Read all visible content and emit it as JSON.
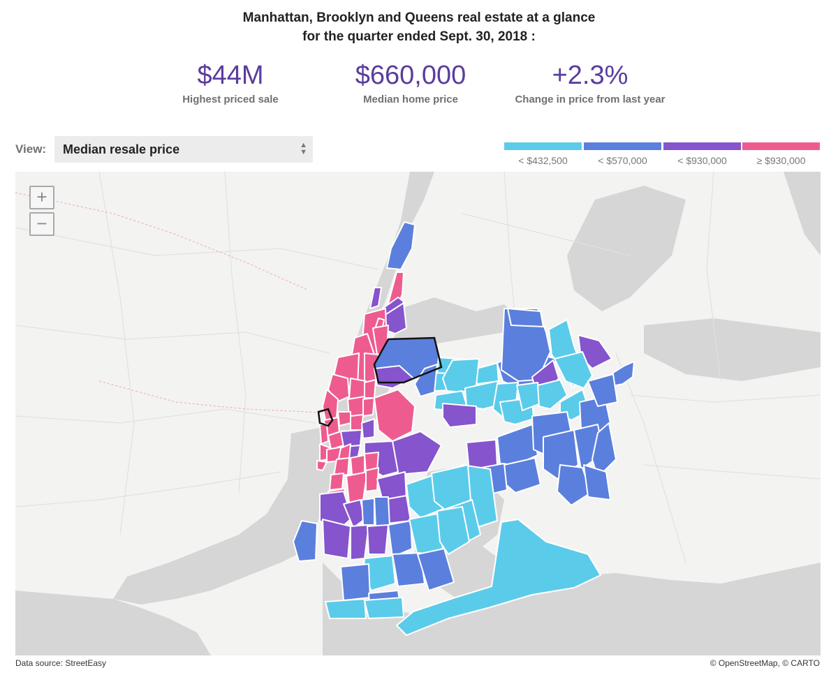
{
  "header": {
    "title_line1": "Manhattan, Brooklyn and Queens real estate at a glance",
    "title_line2": "for the quarter ended Sept. 30, 2018 :"
  },
  "stats": [
    {
      "value": "$44M",
      "label": "Highest priced sale"
    },
    {
      "value": "$660,000",
      "label": "Median home price"
    },
    {
      "value": "+2.3%",
      "label": "Change in price from last year"
    }
  ],
  "view": {
    "label": "View:",
    "selected": "Median resale price"
  },
  "legend": [
    {
      "label": "< $432,500",
      "color": "#5bcbea"
    },
    {
      "label": "< $570,000",
      "color": "#5b7fdc"
    },
    {
      "label": "< $930,000",
      "color": "#8654cc"
    },
    {
      "label": "≥ $930,000",
      "color": "#ee5c8f"
    }
  ],
  "zoom": {
    "in": "+",
    "out": "−"
  },
  "footer": {
    "source": "Data source: StreetEasy",
    "attribution": "© OpenStreetMap, © CARTO"
  }
}
